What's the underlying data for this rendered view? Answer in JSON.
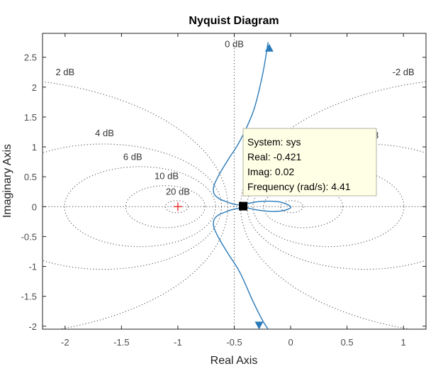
{
  "chart_data": {
    "type": "line",
    "title": "Nyquist Diagram",
    "xlabel": "Real Axis",
    "ylabel": "Imaginary Axis",
    "xlim": [
      -2.2,
      1.2
    ],
    "ylim": [
      -2.05,
      2.9
    ],
    "xticks": [
      -2,
      -1.5,
      -1,
      -0.5,
      0,
      0.5,
      1
    ],
    "xtick_labels": [
      "-2",
      "-1.5",
      "-1",
      "-0.5",
      "0",
      "0.5",
      "1"
    ],
    "yticks": [
      -2,
      -1.5,
      -1,
      -0.5,
      0,
      0.5,
      1,
      1.5,
      2,
      2.5
    ],
    "ytick_labels": [
      "-2",
      "-1.5",
      "-1",
      "-0.5",
      "0",
      "0.5",
      "1",
      "1.5",
      "2",
      "2.5"
    ],
    "grid": "dotted constant-gain circles (M-circles)",
    "colors": {
      "curve": "#2a7ab9",
      "grid": "#555555",
      "marker": "#000000",
      "critical_point": "#e8231f",
      "tooltip_bg": "#ffffe6",
      "tooltip_border": "#b0b0a0"
    },
    "gain_labels": [
      {
        "text": "0 dB",
        "x": -0.5,
        "y": 2.67
      },
      {
        "text": "2 dB",
        "x": -2.0,
        "y": 2.2
      },
      {
        "text": "-2 dB",
        "x": 1.0,
        "y": 2.2
      },
      {
        "text": "4 dB",
        "x": -1.65,
        "y": 1.18
      },
      {
        "text": "6 dB",
        "x": -1.4,
        "y": 0.78
      },
      {
        "text": "10 dB",
        "x": -1.1,
        "y": 0.46
      },
      {
        "text": "20 dB",
        "x": -1.0,
        "y": 0.2
      }
    ],
    "series": [
      {
        "x": [
          -0.2,
          -0.25,
          -0.33,
          -0.45,
          -0.55,
          -0.63,
          -0.68,
          -0.68,
          -0.64,
          -0.58,
          -0.52,
          -0.47,
          -0.42,
          -0.36,
          -0.25,
          -0.1,
          0.0,
          -0.05,
          -0.15,
          -0.28,
          -0.38,
          -0.42
        ],
        "y": [
          2.75,
          2.2,
          1.6,
          1.1,
          0.8,
          0.55,
          0.35,
          0.22,
          0.14,
          0.09,
          0.05,
          0.03,
          0.035,
          0.06,
          0.09,
          0.08,
          0.0,
          -0.06,
          -0.08,
          -0.06,
          -0.02,
          0.02
        ]
      },
      {
        "x": [
          -0.42,
          -0.47,
          -0.52,
          -0.58,
          -0.64,
          -0.68,
          -0.68,
          -0.63,
          -0.55,
          -0.45,
          -0.33,
          -0.25,
          -0.2
        ],
        "y": [
          0.0,
          -0.03,
          -0.05,
          -0.09,
          -0.14,
          -0.22,
          -0.35,
          -0.55,
          -0.8,
          -1.1,
          -1.6,
          -1.9,
          -2.05
        ]
      }
    ],
    "critical_point": {
      "x": -1,
      "y": 0
    },
    "selected_point": {
      "x": -0.421,
      "y": 0.02
    },
    "tooltip": {
      "system": "System: sys",
      "real": "Real: -0.421",
      "imag": "Imag: 0.02",
      "frequency": "Frequency (rad/s): 4.41",
      "hidden_partial_label": "3"
    }
  }
}
